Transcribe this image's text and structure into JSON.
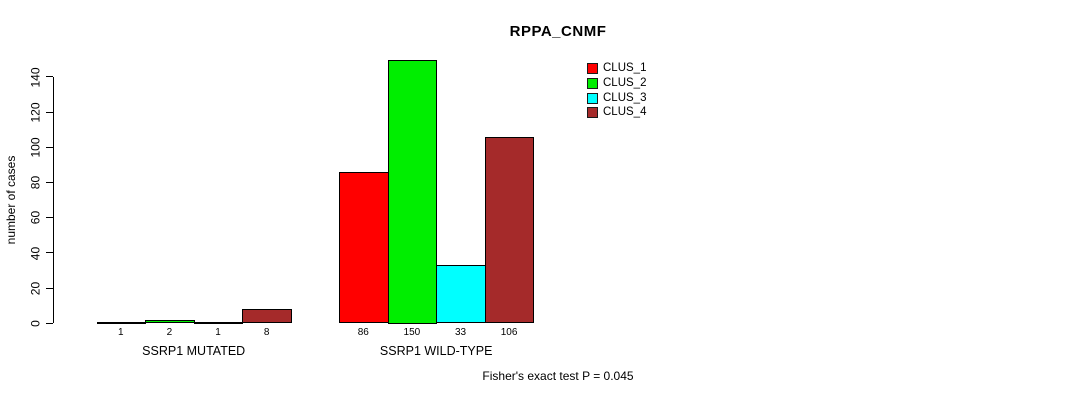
{
  "chart_data": {
    "type": "bar",
    "title": "RPPA_CNMF",
    "ylabel": "number of cases",
    "xlabel": "",
    "yticks": [
      0,
      20,
      40,
      60,
      80,
      100,
      120,
      140
    ],
    "ylim": [
      0,
      150
    ],
    "grid": false,
    "legend_position": "top-right",
    "categories": [
      "SSRP1 MUTATED",
      "SSRP1 WILD-TYPE"
    ],
    "series": [
      {
        "name": "CLUS_1",
        "color": "#FF0000",
        "values": [
          1,
          86
        ]
      },
      {
        "name": "CLUS_2",
        "color": "#00EE00",
        "values": [
          2,
          150
        ]
      },
      {
        "name": "CLUS_3",
        "color": "#00FFFF",
        "values": [
          1,
          33
        ]
      },
      {
        "name": "CLUS_4",
        "color": "#A52A2A",
        "values": [
          8,
          106
        ]
      }
    ],
    "bar_value_labels": [
      [
        "1",
        "2",
        "1",
        "8"
      ],
      [
        "86",
        "150",
        "33",
        "106"
      ]
    ],
    "annotation": "Fisher's exact test P = 0.045"
  }
}
